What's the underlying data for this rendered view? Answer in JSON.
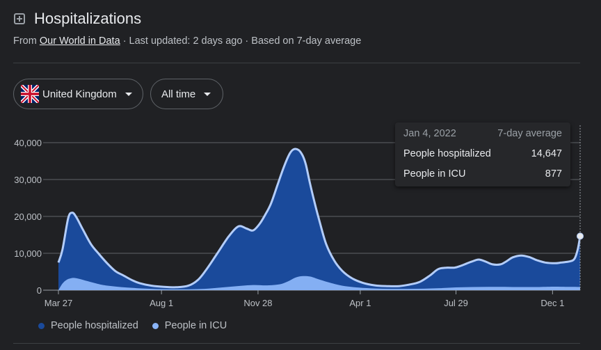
{
  "header": {
    "title": "Hospitalizations",
    "source_prefix": "From",
    "source_link": "Our World in Data",
    "source_suffix": "· Last updated: 2 days ago · Based on 7-day average"
  },
  "controls": {
    "country": "United Kingdom",
    "time_range": "All time"
  },
  "tooltip": {
    "date": "Jan 4, 2022",
    "basis": "7-day average",
    "rows": [
      {
        "label": "People hospitalized",
        "value": "14,647"
      },
      {
        "label": "People in ICU",
        "value": "877"
      }
    ]
  },
  "legend": [
    {
      "name": "People hospitalized",
      "color": "#1a4a9b"
    },
    {
      "name": "People in ICU",
      "color": "#8ab4f8"
    }
  ],
  "chart_data": {
    "type": "area",
    "y_ticks": [
      "40,000",
      "30,000",
      "20,000",
      "10,000",
      "0"
    ],
    "y_tick_values": [
      40000,
      30000,
      20000,
      10000,
      0
    ],
    "ylim": [
      0,
      40000
    ],
    "x_ticks": [
      "Mar 27",
      "Aug 1",
      "Nov 28",
      "Apr 1",
      "Jul 29",
      "Dec 1"
    ],
    "x_tick_positions": [
      0,
      127,
      246,
      372,
      490,
      609
    ],
    "x_unit": "days since Mar 27",
    "xlim": [
      0,
      643
    ],
    "series": [
      {
        "name": "People hospitalized",
        "color": "#1a4a9b",
        "line_color": "#b3cdfa",
        "x": [
          0,
          5,
          12,
          17,
          22,
          30,
          40,
          50,
          60,
          70,
          80,
          90,
          100,
          115,
          130,
          145,
          160,
          172,
          182,
          195,
          210,
          222,
          232,
          240,
          248,
          255,
          262,
          270,
          278,
          285,
          290,
          296,
          301,
          305,
          310,
          316,
          322,
          330,
          340,
          350,
          362,
          375,
          390,
          405,
          420,
          432,
          445,
          458,
          468,
          478,
          488,
          496,
          503,
          510,
          518,
          526,
          535,
          545,
          552,
          560,
          570,
          580,
          590,
          600,
          612,
          620,
          630,
          636,
          640,
          643
        ],
        "values": [
          7500,
          11000,
          19500,
          21000,
          19800,
          16500,
          12500,
          9800,
          7300,
          5200,
          4000,
          2800,
          1900,
          1200,
          900,
          800,
          1200,
          2800,
          5500,
          9700,
          14600,
          17300,
          16700,
          16200,
          18000,
          20500,
          23500,
          28500,
          33500,
          37000,
          38200,
          38000,
          36500,
          34000,
          29000,
          23500,
          18500,
          12500,
          8000,
          5200,
          3200,
          2000,
          1300,
          1100,
          1100,
          1500,
          2200,
          4000,
          5700,
          6100,
          6100,
          6600,
          7200,
          7800,
          8300,
          7800,
          7000,
          7000,
          7800,
          8900,
          9400,
          9000,
          8100,
          7500,
          7300,
          7500,
          7800,
          8500,
          11000,
          14647
        ]
      },
      {
        "name": "People in ICU",
        "color": "#8ab4f8",
        "x": [
          0,
          5,
          10,
          15,
          20,
          27,
          35,
          45,
          55,
          70,
          85,
          100,
          120,
          140,
          160,
          180,
          200,
          220,
          240,
          255,
          265,
          275,
          285,
          292,
          300,
          310,
          320,
          335,
          350,
          370,
          390,
          410,
          430,
          450,
          470,
          490,
          510,
          530,
          550,
          570,
          590,
          610,
          625,
          635,
          643
        ],
        "values": [
          0,
          1800,
          2800,
          3200,
          3300,
          3000,
          2500,
          1900,
          1400,
          1000,
          700,
          500,
          300,
          250,
          250,
          350,
          700,
          1100,
          1400,
          1300,
          1400,
          1700,
          2600,
          3400,
          3800,
          3700,
          3000,
          2000,
          1200,
          700,
          450,
          350,
          350,
          400,
          550,
          750,
          850,
          900,
          900,
          850,
          850,
          950,
          900,
          880,
          877
        ]
      }
    ],
    "highlight": {
      "x": 643,
      "value": 14647
    }
  }
}
